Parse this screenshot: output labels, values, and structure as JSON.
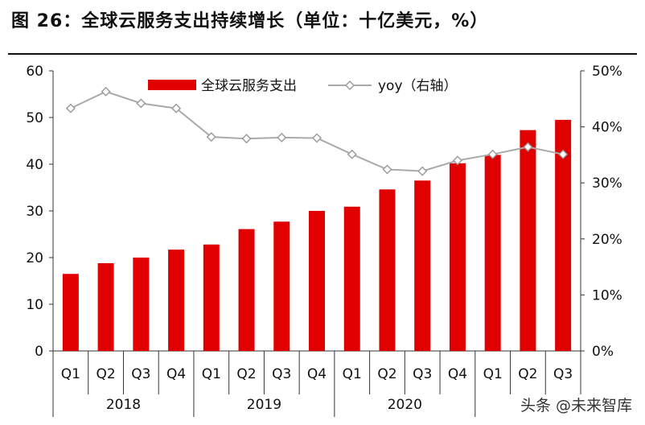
{
  "header": {
    "title": "图 26：全球云服务支出持续增长（单位：十亿美元，%）"
  },
  "watermark": "头条 @未来智库",
  "chart_data": {
    "type": "bar",
    "title": "图 26：全球云服务支出持续增长（单位：十亿美元，%）",
    "categories": [
      "Q1",
      "Q2",
      "Q3",
      "Q4",
      "Q1",
      "Q2",
      "Q3",
      "Q4",
      "Q1",
      "Q2",
      "Q3",
      "Q4",
      "Q1",
      "Q2",
      "Q3"
    ],
    "years": [
      {
        "label": "2018",
        "count": 4
      },
      {
        "label": "2019",
        "count": 4
      },
      {
        "label": "2020",
        "count": 4
      },
      {
        "label": "",
        "count": 3
      }
    ],
    "series": [
      {
        "name": "全球云服务支出",
        "type": "bar",
        "axis": "left",
        "color": "#e00000",
        "values": [
          16.5,
          18.8,
          20.0,
          21.7,
          22.8,
          26.1,
          27.7,
          30.0,
          30.9,
          34.6,
          36.5,
          40.2,
          42.0,
          47.3,
          49.5
        ]
      },
      {
        "name": "yoy（右轴）",
        "type": "line",
        "axis": "right",
        "color": "#aaaaaa",
        "values": [
          43.3,
          46.3,
          44.2,
          43.3,
          38.2,
          37.9,
          38.1,
          38.0,
          35.1,
          32.4,
          32.1,
          34.0,
          35.1,
          36.4,
          35.1
        ]
      }
    ],
    "y_left": {
      "ylim": [
        0,
        60
      ],
      "ticks": [
        0,
        10,
        20,
        30,
        40,
        50,
        60
      ]
    },
    "y_right": {
      "ylim": [
        0,
        50
      ],
      "ticks": [
        "0%",
        "10%",
        "20%",
        "30%",
        "40%",
        "50%"
      ]
    },
    "legend_position": "top-center",
    "grid": false
  }
}
